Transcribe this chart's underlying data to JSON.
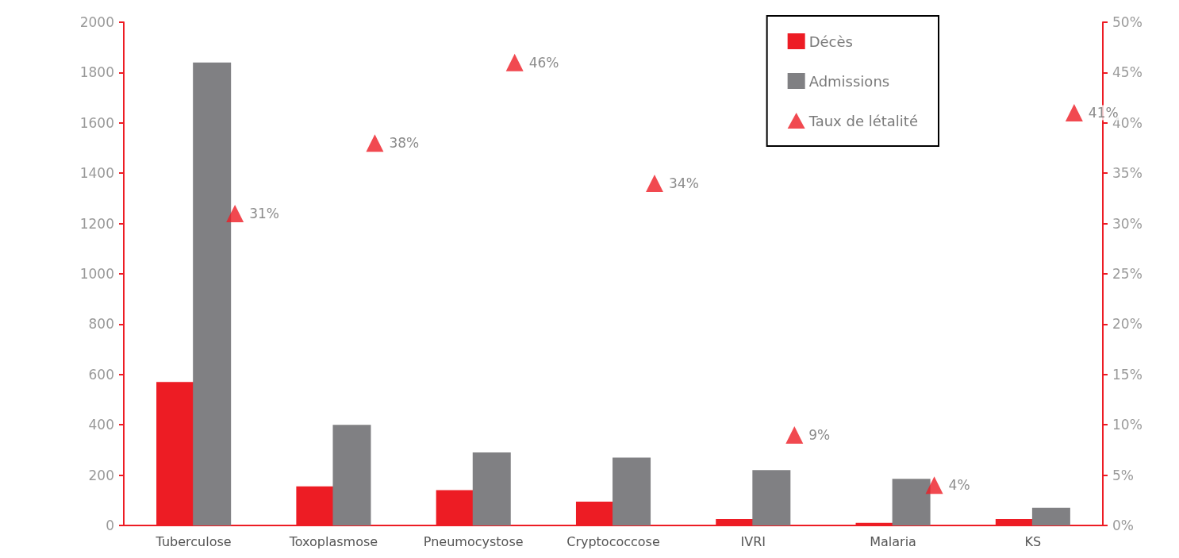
{
  "chart_data": {
    "type": "bar",
    "categories": [
      "Tuberculose",
      "Toxoplasmose",
      "Pneumocystose",
      "Cryptococcose",
      "IVRI",
      "Malaria",
      "KS"
    ],
    "series": [
      {
        "name": "Décès",
        "color": "#ed1c24",
        "values": [
          570,
          155,
          140,
          95,
          25,
          10,
          25
        ]
      },
      {
        "name": "Admissions",
        "color": "#808083",
        "values": [
          1840,
          400,
          290,
          270,
          220,
          185,
          70
        ]
      },
      {
        "name": "Taux de létalité",
        "type": "scatter",
        "axis": "y2",
        "marker": "triangle",
        "color": "#ed1c24",
        "values": [
          31,
          38,
          46,
          34,
          9,
          4,
          41
        ],
        "value_labels": [
          "31%",
          "38%",
          "46%",
          "34%",
          "9%",
          "4%",
          "41%"
        ]
      }
    ],
    "ylim": [
      0,
      2000
    ],
    "yticks": [
      0,
      200,
      400,
      600,
      800,
      1000,
      1200,
      1400,
      1600,
      1800,
      2000
    ],
    "y2lim": [
      0,
      50
    ],
    "y2ticks": [
      {
        "value": 0,
        "label": "0%"
      },
      {
        "value": 5,
        "label": "5%"
      },
      {
        "value": 10,
        "label": "10%"
      },
      {
        "value": 15,
        "label": "15%"
      },
      {
        "value": 20,
        "label": "20%"
      },
      {
        "value": 25,
        "label": "25%"
      },
      {
        "value": 30,
        "label": "30%"
      },
      {
        "value": 35,
        "label": "35%"
      },
      {
        "value": 40,
        "label": "40%"
      },
      {
        "value": 45,
        "label": "45%"
      },
      {
        "value": 50,
        "label": "50%"
      }
    ],
    "grid": false,
    "legend": "top right"
  }
}
